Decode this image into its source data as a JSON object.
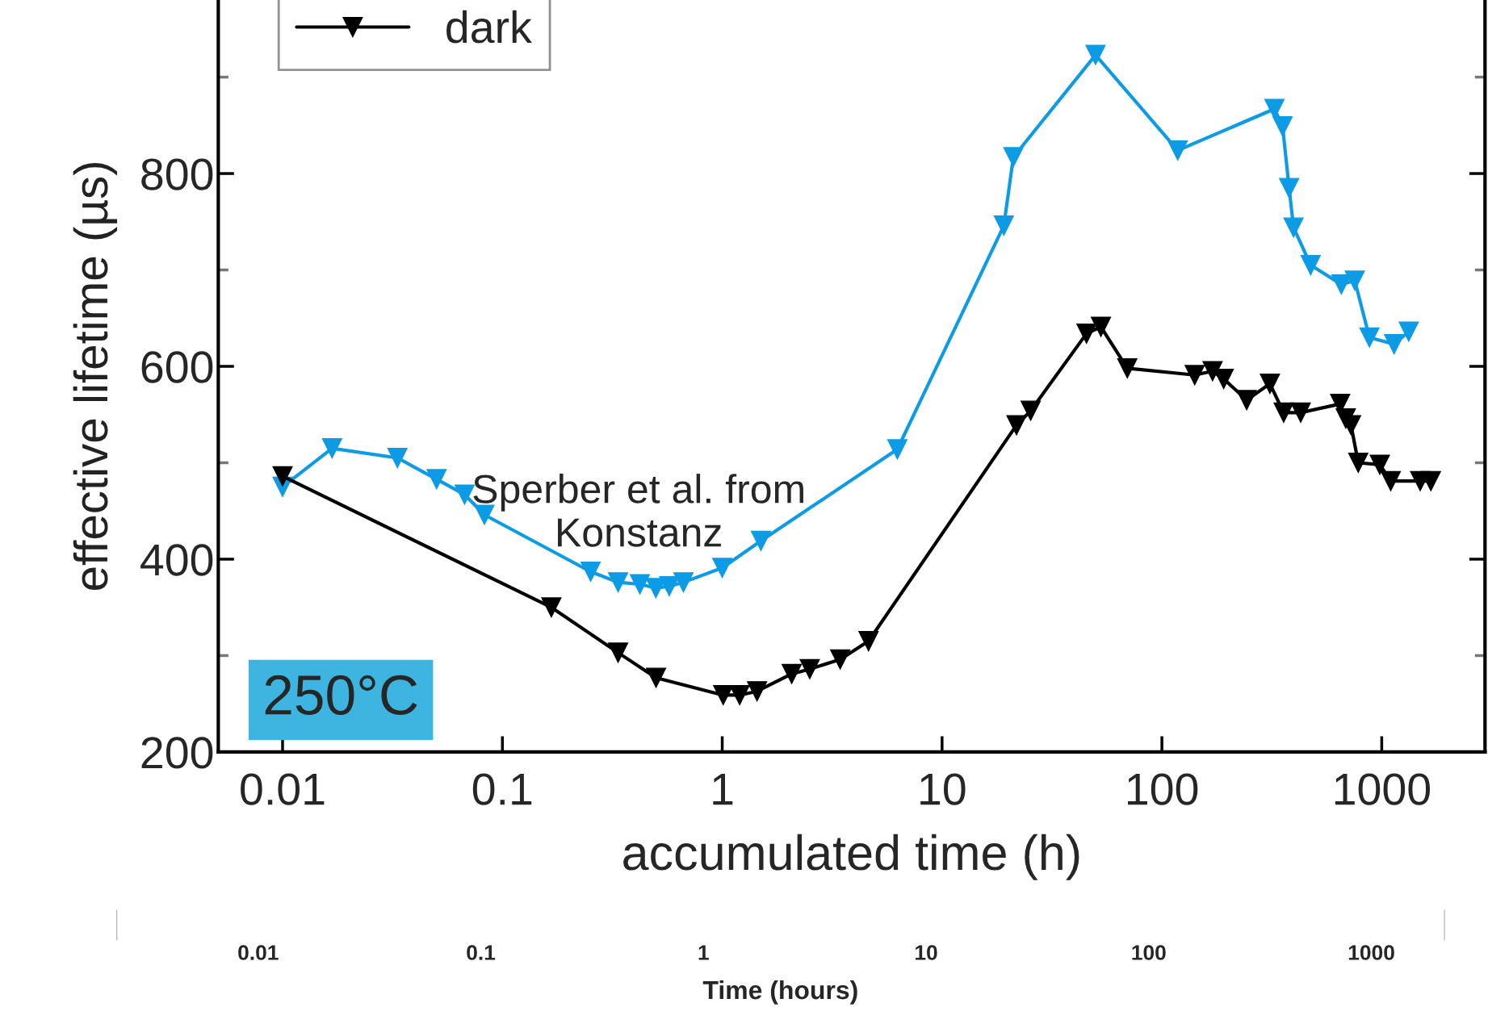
{
  "chart_data": [
    {
      "type": "line",
      "xlabel": "accumulated time (h)",
      "ylabel": "effective lifetime (µs)",
      "log": "x",
      "xlim": [
        0.0051,
        2950
      ],
      "xticks": [
        0.01,
        0.1,
        1,
        10,
        100,
        1000
      ],
      "ylim": [
        200,
        980
      ],
      "yticks": [
        200,
        {
          "value": 300,
          "label": null
        },
        400,
        {
          "value": 500,
          "label": null
        },
        600,
        {
          "value": 700,
          "label": null
        },
        800,
        {
          "value": 900,
          "label": null
        }
      ],
      "grid": false,
      "legend": "top left",
      "marker": "triangle",
      "line_style": "solid",
      "annotations": [
        "Sperber et al. from\nKonstanz",
        "250°C"
      ],
      "series": [
        {
          "color": "#0d9be6",
          "x": [
            0.01,
            0.0168,
            0.0333,
            0.0502,
            0.0673,
            0.0828,
            0.252,
            0.336,
            0.422,
            0.499,
            0.574,
            0.666,
            1.0,
            1.5,
            6.26,
            19.1,
            21.1,
            49.9,
            118,
            325,
            354,
            379,
            397,
            475,
            655,
            754,
            879,
            1138,
            1327
          ],
          "values": [
            475,
            515,
            505,
            483,
            467,
            446,
            387,
            376,
            374,
            370,
            372,
            376,
            391,
            419,
            514,
            746,
            817,
            923,
            824,
            867,
            849,
            785,
            744,
            705,
            685,
            689,
            630,
            623,
            636
          ]
        },
        {
          "name": "dark",
          "color": "#000000",
          "x": [
            0.01,
            0.167,
            0.336,
            0.5,
            1.01,
            1.2,
            1.44,
            2.07,
            2.5,
            3.44,
            4.63,
            21.8,
            25.3,
            45.4,
            52.8,
            69.6,
            141,
            170,
            191,
            243,
            310,
            358,
            428,
            647,
            686,
            725,
            782,
            980,
            1099,
            1496,
            1673
          ],
          "values": [
            486,
            350,
            303,
            277,
            259,
            259,
            263,
            281,
            286,
            296,
            315,
            539,
            554,
            634,
            641,
            598,
            591,
            595,
            587,
            565,
            582,
            552,
            552,
            561,
            546,
            539,
            500,
            498,
            481,
            481,
            481
          ]
        }
      ]
    },
    {
      "type": "other",
      "xlabel": "Time (hours)",
      "annotations": [
        "0.01",
        "0.1",
        "1",
        "10",
        "100",
        "1000"
      ]
    }
  ]
}
